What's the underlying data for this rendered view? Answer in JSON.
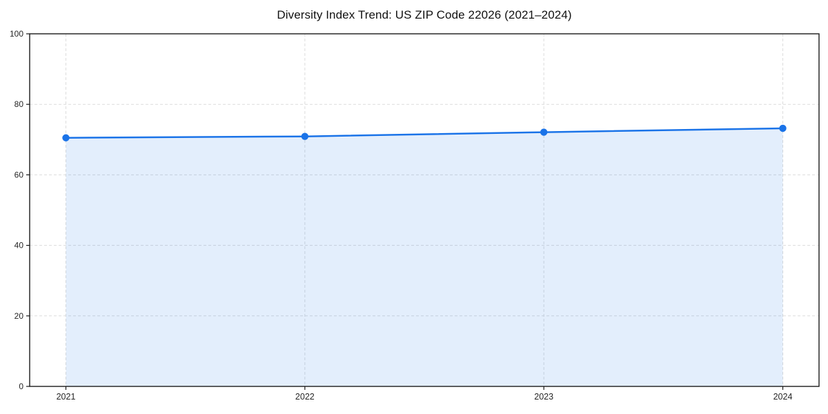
{
  "chart_data": {
    "type": "area",
    "title": "Diversity Index Trend: US ZIP Code 22026 (2021–2024)",
    "x": [
      2021,
      2022,
      2023,
      2024
    ],
    "xticklabels": [
      "2021",
      "2022",
      "2023",
      "2024"
    ],
    "values": [
      70.5,
      70.9,
      72.1,
      73.2
    ],
    "ylim": [
      0,
      100
    ],
    "yticks": [
      0,
      20,
      40,
      60,
      80,
      100
    ],
    "yticklabels": [
      "0",
      "20",
      "40",
      "60",
      "80",
      "100"
    ],
    "grid": true,
    "grid_style": "dashed",
    "legend": "none",
    "colors": {
      "line": "#1a73e8",
      "marker": "#1a73e8",
      "fill": "rgba(26,115,232,0.12)",
      "grid": "#dcdcdc",
      "axis": "#1a1a1a",
      "tick_label": "#262626",
      "title": "#111111",
      "background": "#ffffff"
    }
  }
}
